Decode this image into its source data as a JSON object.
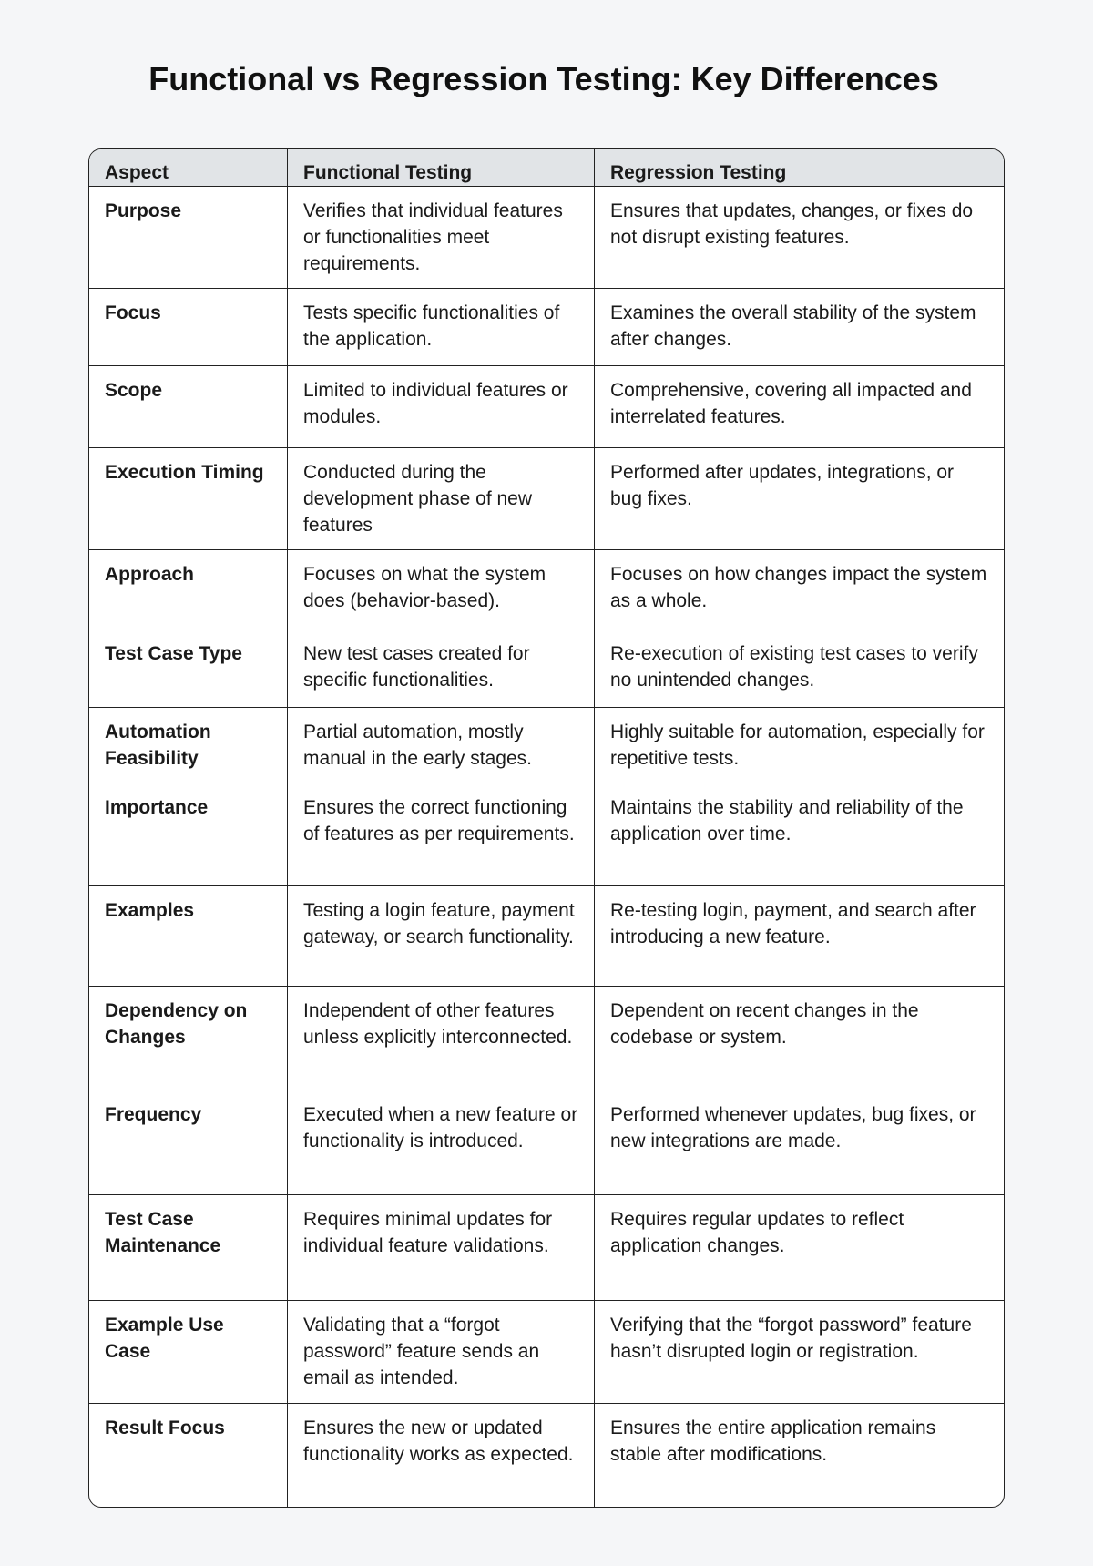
{
  "title": "Functional vs Regression Testing: Key Differences",
  "headers": [
    "Aspect",
    "Functional Testing",
    "Regression Testing"
  ],
  "rows": [
    [
      "Purpose",
      "Verifies that individual features or functionalities meet requirements.",
      "Ensures that updates, changes, or fixes do not disrupt existing features."
    ],
    [
      "Focus",
      "Tests specific functionalities of the application.",
      "Examines the overall stability of the system after changes."
    ],
    [
      "Scope",
      "Limited to individual features or modules.",
      "Comprehensive, covering all impacted and interrelated features."
    ],
    [
      "Execution Timing",
      "Conducted during the development phase of new features",
      "Performed after updates, integrations, or bug fixes."
    ],
    [
      "Approach",
      "Focuses on what the system does (behavior-based).",
      "Focuses on how changes impact the system as a whole."
    ],
    [
      "Test Case Type",
      "New test cases created for specific functionalities.",
      "Re-execution of existing test cases to verify no unintended changes."
    ],
    [
      "Automation Feasibility",
      "Partial automation, mostly manual in the early stages.",
      "Highly suitable for automation, especially for repetitive tests."
    ],
    [
      "Importance",
      "Ensures the correct functioning of features as per requirements.",
      "Maintains the stability and reliability of the application over time."
    ],
    [
      "Examples",
      "Testing a login feature, payment gateway, or search functionality.",
      "Re-testing login, payment, and search after introducing a new feature."
    ],
    [
      "Dependency on Changes",
      "Independent of other features unless explicitly interconnected.",
      "Dependent on recent changes in the codebase or system."
    ],
    [
      "Frequency",
      "Executed when a new feature or functionality is introduced.",
      "Performed whenever updates, bug fixes, or new integrations are made."
    ],
    [
      "Test Case Maintenance",
      "Requires minimal updates for individual feature validations.",
      "Requires regular updates to reflect application changes."
    ],
    [
      "Example Use Case",
      "Validating that a “forgot password” feature sends an email as intended.",
      "Verifying that the “forgot password” feature hasn’t disrupted login or registration."
    ],
    [
      "Result Focus",
      "Ensures the new or updated functionality works as expected.",
      "Ensures the entire application remains stable after modifications."
    ]
  ]
}
